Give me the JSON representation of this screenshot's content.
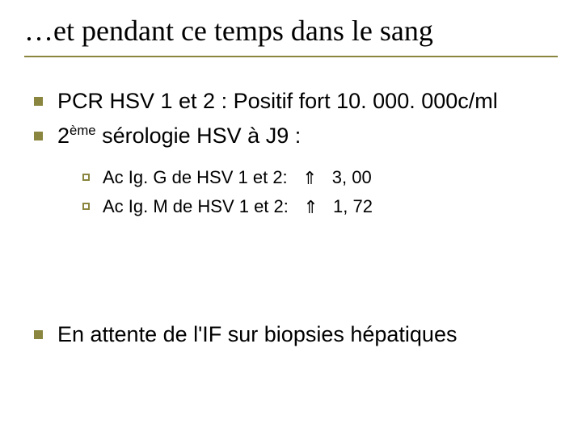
{
  "colors": {
    "title_underline": "#8a863f",
    "bullet_lvl1": "#8a863f",
    "bullet_lvl2_border": "#8a863f",
    "text": "#000000",
    "background": "#ffffff"
  },
  "typography": {
    "title_font": "Times New Roman",
    "title_size_pt": 36,
    "body_font": "Arial",
    "lvl1_size_pt": 27,
    "lvl2_size_pt": 22
  },
  "title": "…et pendant ce temps dans le sang",
  "bullets_lvl1_top": [
    "PCR HSV 1 et 2 : Positif fort 10. 000. 000c/ml",
    "2<sup>ème</sup> sérologie HSV à J9 :"
  ],
  "bullets_lvl2": [
    {
      "label": "Ac Ig. G de HSV 1 et 2:",
      "arrow": "⇑",
      "value": "3, 00"
    },
    {
      "label": "Ac Ig. M de HSV 1 et 2:",
      "arrow": "⇑",
      "value": "1, 72"
    }
  ],
  "bullets_lvl1_bottom": [
    "En attente de l'IF sur biopsies hépatiques"
  ]
}
